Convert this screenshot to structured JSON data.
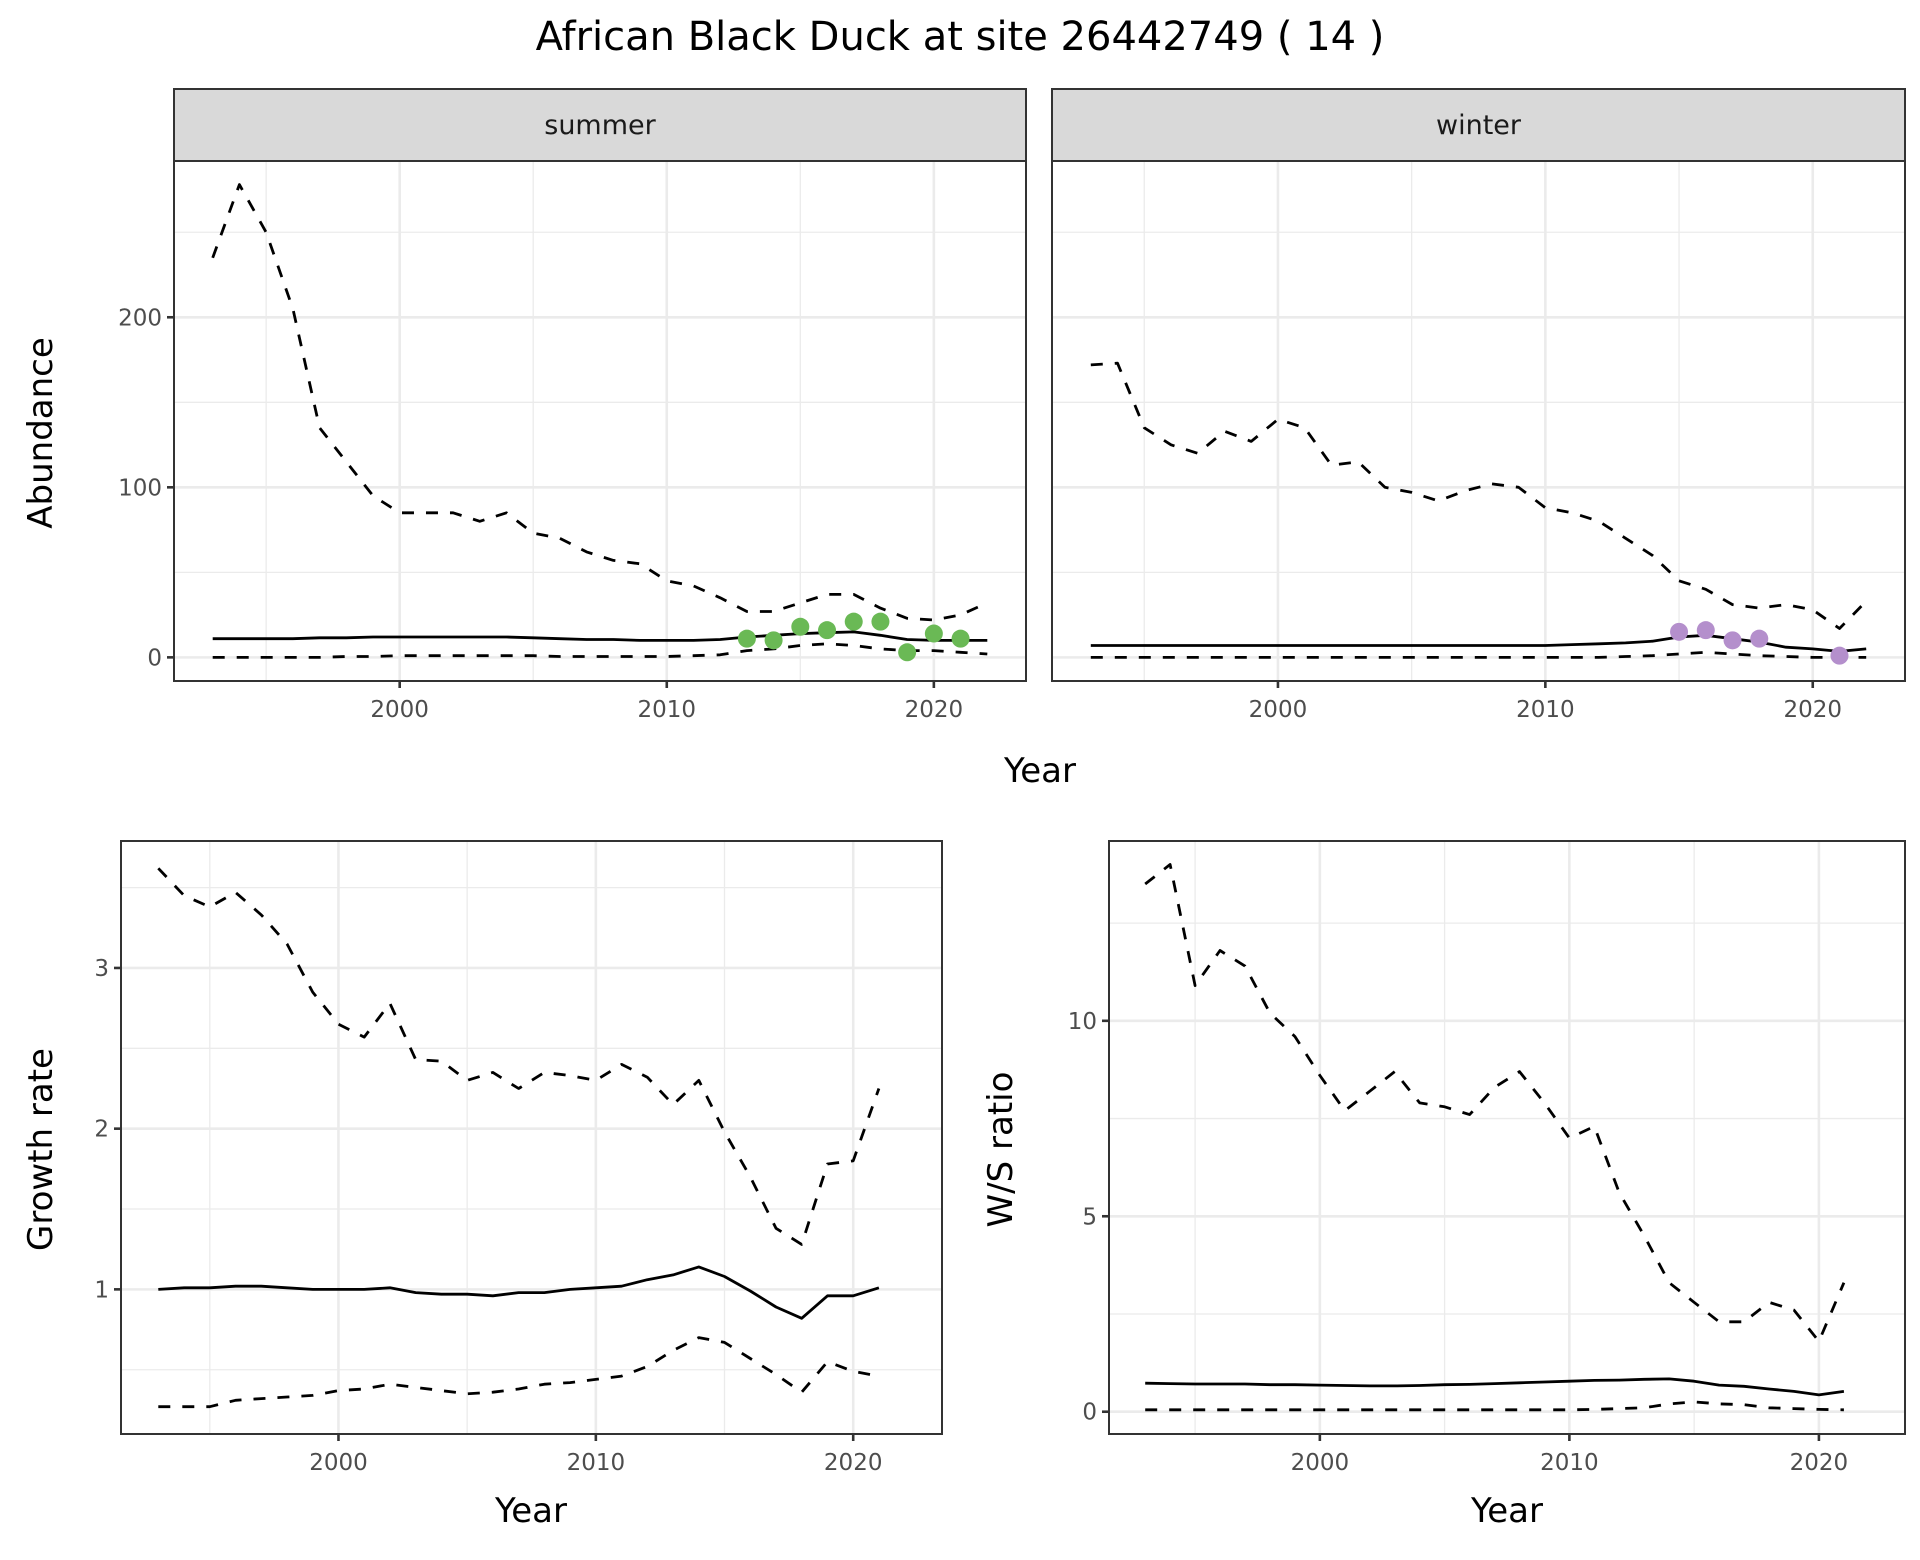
{
  "title": "African Black Duck at site 26442749 ( 14 )",
  "chart_data": [
    {
      "type": "line",
      "facet": "summer",
      "xlabel": "Year",
      "ylabel": "Abundance",
      "xlim": [
        1991.55,
        2023.45
      ],
      "ylim": [
        -13.9,
        291.9
      ],
      "xticks": [
        2000,
        2010,
        2020
      ],
      "yticks": [
        0,
        100,
        200
      ],
      "x": [
        1993,
        1994,
        1995,
        1996,
        1997,
        1998,
        1999,
        2000,
        2001,
        2002,
        2003,
        2004,
        2005,
        2006,
        2007,
        2008,
        2009,
        2010,
        2011,
        2012,
        2013,
        2014,
        2015,
        2016,
        2017,
        2018,
        2019,
        2020,
        2021,
        2022
      ],
      "series": [
        {
          "name": "upper",
          "style": "dashed",
          "values": [
            235,
            278,
            250,
            205,
            135,
            115,
            95,
            85,
            85,
            85,
            80,
            85,
            73,
            70,
            62,
            57,
            55,
            45,
            42,
            35,
            27,
            27,
            32,
            37,
            37,
            29,
            23,
            22,
            25,
            32
          ]
        },
        {
          "name": "mean",
          "style": "solid",
          "values": [
            11,
            11,
            11,
            11,
            11.5,
            11.5,
            12,
            12,
            12,
            12,
            12,
            12,
            11.5,
            11,
            10.5,
            10.5,
            10,
            10,
            10,
            10.5,
            12,
            13,
            14,
            14.5,
            15,
            13,
            10.5,
            10,
            10,
            10
          ]
        },
        {
          "name": "lower",
          "style": "dashed",
          "values": [
            0,
            0,
            0,
            0,
            0,
            0.5,
            0.5,
            1,
            1,
            1,
            1,
            1,
            1,
            0.5,
            0.5,
            0.5,
            0.5,
            0.5,
            1,
            1.5,
            4,
            5,
            7,
            8,
            7,
            5,
            4,
            4,
            3,
            2
          ]
        }
      ],
      "points": {
        "color": "#6ab955",
        "x": [
          2013,
          2014,
          2015,
          2016,
          2017,
          2018,
          2019,
          2020,
          2021
        ],
        "y": [
          11,
          10,
          18,
          16,
          21,
          21,
          3,
          14,
          11
        ]
      }
    },
    {
      "type": "line",
      "facet": "winter",
      "xlabel": "Year",
      "ylabel": "Abundance",
      "xlim": [
        1991.55,
        2023.45
      ],
      "ylim": [
        -13.9,
        291.9
      ],
      "xticks": [
        2000,
        2010,
        2020
      ],
      "yticks": [
        0,
        100,
        200
      ],
      "x": [
        1993,
        1994,
        1995,
        1996,
        1997,
        1998,
        1999,
        2000,
        2001,
        2002,
        2003,
        2004,
        2005,
        2006,
        2007,
        2008,
        2009,
        2010,
        2011,
        2012,
        2013,
        2014,
        2015,
        2016,
        2017,
        2018,
        2019,
        2020,
        2021,
        2022
      ],
      "series": [
        {
          "name": "upper",
          "style": "dashed",
          "values": [
            172,
            173,
            135,
            125,
            120,
            133,
            127,
            140,
            135,
            113,
            115,
            100,
            97,
            92,
            98,
            102,
            100,
            88,
            85,
            80,
            70,
            60,
            45,
            40,
            31,
            29,
            31,
            28,
            17,
            33
          ]
        },
        {
          "name": "mean",
          "style": "solid",
          "values": [
            7,
            7,
            7,
            7,
            7,
            7,
            7,
            7,
            7,
            7,
            7,
            7,
            7,
            7,
            7,
            7,
            7,
            7,
            7.5,
            8,
            8.5,
            9.5,
            12,
            13,
            11,
            9,
            6,
            5,
            3.5,
            5
          ]
        },
        {
          "name": "lower",
          "style": "dashed",
          "values": [
            0,
            0,
            0,
            0,
            0,
            0,
            0,
            0,
            0,
            0,
            0,
            0,
            0,
            0,
            0,
            0,
            0,
            0,
            0,
            0,
            0.5,
            1,
            2,
            3,
            2,
            1,
            0.5,
            0,
            0,
            0
          ]
        }
      ],
      "points": {
        "color": "#b48fcc",
        "x": [
          2015,
          2016,
          2017,
          2018,
          2021
        ],
        "y": [
          15,
          16,
          10,
          11,
          1
        ]
      }
    },
    {
      "type": "line",
      "xlabel": "Year",
      "ylabel": "Growth rate",
      "xlim": [
        1991.55,
        2023.45
      ],
      "ylim": [
        0.1,
        3.79
      ],
      "xticks": [
        2000,
        2010,
        2020
      ],
      "yticks": [
        1,
        2,
        3
      ],
      "x": [
        1993,
        1994,
        1995,
        1996,
        1997,
        1998,
        1999,
        2000,
        2001,
        2002,
        2003,
        2004,
        2005,
        2006,
        2007,
        2008,
        2009,
        2010,
        2011,
        2012,
        2013,
        2014,
        2015,
        2016,
        2017,
        2018,
        2019,
        2020,
        2021
      ],
      "series": [
        {
          "name": "upper",
          "style": "dashed",
          "values": [
            3.62,
            3.45,
            3.38,
            3.47,
            3.33,
            3.15,
            2.85,
            2.65,
            2.57,
            2.78,
            2.43,
            2.42,
            2.3,
            2.35,
            2.25,
            2.35,
            2.33,
            2.3,
            2.4,
            2.32,
            2.15,
            2.3,
            1.98,
            1.7,
            1.38,
            1.28,
            1.78,
            1.8,
            2.25
          ]
        },
        {
          "name": "mean",
          "style": "solid",
          "values": [
            1.0,
            1.01,
            1.01,
            1.02,
            1.02,
            1.01,
            1.0,
            1.0,
            1.0,
            1.01,
            0.98,
            0.97,
            0.97,
            0.96,
            0.98,
            0.98,
            1.0,
            1.01,
            1.02,
            1.06,
            1.09,
            1.14,
            1.08,
            0.99,
            0.89,
            0.82,
            0.96,
            0.96,
            1.01
          ]
        },
        {
          "name": "lower",
          "style": "dashed",
          "values": [
            0.27,
            0.27,
            0.27,
            0.31,
            0.32,
            0.33,
            0.34,
            0.37,
            0.38,
            0.41,
            0.39,
            0.37,
            0.35,
            0.36,
            0.38,
            0.41,
            0.42,
            0.44,
            0.46,
            0.52,
            0.62,
            0.7,
            0.67,
            0.57,
            0.47,
            0.36,
            0.55,
            0.49,
            0.46
          ]
        }
      ]
    },
    {
      "type": "line",
      "xlabel": "Year",
      "ylabel": "W/S ratio",
      "xlim": [
        1991.55,
        2023.45
      ],
      "ylim": [
        -0.57,
        14.6
      ],
      "xticks": [
        2000,
        2010,
        2020
      ],
      "yticks": [
        0,
        5,
        10
      ],
      "x": [
        1993,
        1994,
        1995,
        1996,
        1997,
        1998,
        1999,
        2000,
        2001,
        2002,
        2003,
        2004,
        2005,
        2006,
        2007,
        2008,
        2009,
        2010,
        2011,
        2012,
        2013,
        2014,
        2015,
        2016,
        2017,
        2018,
        2019,
        2020,
        2021
      ],
      "series": [
        {
          "name": "upper",
          "style": "dashed",
          "values": [
            13.5,
            14.0,
            10.9,
            11.8,
            11.4,
            10.2,
            9.6,
            8.6,
            7.7,
            8.2,
            8.7,
            7.9,
            7.8,
            7.6,
            8.3,
            8.7,
            7.9,
            7.0,
            7.3,
            5.6,
            4.5,
            3.3,
            2.8,
            2.3,
            2.3,
            2.8,
            2.6,
            1.8,
            3.3
          ]
        },
        {
          "name": "mean",
          "style": "solid",
          "values": [
            0.73,
            0.72,
            0.71,
            0.71,
            0.71,
            0.69,
            0.69,
            0.68,
            0.67,
            0.66,
            0.66,
            0.67,
            0.69,
            0.7,
            0.72,
            0.74,
            0.76,
            0.78,
            0.8,
            0.81,
            0.83,
            0.84,
            0.78,
            0.68,
            0.65,
            0.58,
            0.52,
            0.43,
            0.52
          ]
        },
        {
          "name": "lower",
          "style": "dashed",
          "values": [
            0.05,
            0.05,
            0.05,
            0.05,
            0.05,
            0.05,
            0.05,
            0.05,
            0.05,
            0.05,
            0.05,
            0.05,
            0.05,
            0.05,
            0.05,
            0.05,
            0.05,
            0.05,
            0.06,
            0.08,
            0.1,
            0.2,
            0.25,
            0.2,
            0.18,
            0.1,
            0.08,
            0.06,
            0.05
          ]
        }
      ]
    }
  ]
}
